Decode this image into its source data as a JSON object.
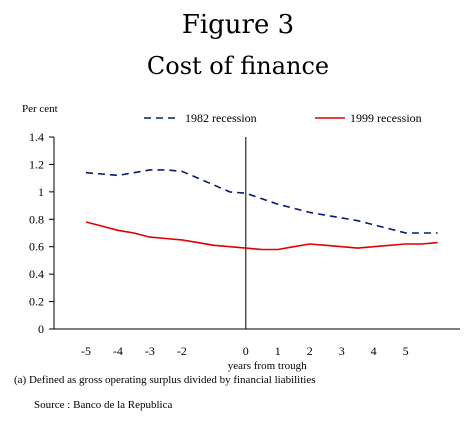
{
  "figure": {
    "title": "Figure 3",
    "subtitle": "Cost of finance"
  },
  "footnote": "(a) Defined as gross operating surplus divided by financial liabilities",
  "source": "Source : Banco de la Republica",
  "chart_data": {
    "type": "line",
    "ylabel": "Per cent",
    "xlabel": "years from trough",
    "ylim": [
      0,
      1.4
    ],
    "yticks": [
      "0",
      "0.2",
      "0.4",
      "0.6",
      "0.8",
      "1",
      "1.2",
      "1.4"
    ],
    "xlim": [
      -6.0,
      6.7
    ],
    "xticks": [
      "-5",
      "-4",
      "-3",
      "-2",
      "0",
      "1",
      "2",
      "3",
      "4",
      "5"
    ],
    "xtick_values": [
      -5,
      -4,
      -3,
      -2,
      0,
      1,
      2,
      3,
      4,
      5
    ],
    "vertical_line_at": 0,
    "grid": false,
    "legend": "top",
    "series": [
      {
        "name": "1982 recession",
        "color": "#0a1a6e",
        "dash": "dashed",
        "x": [
          -5,
          -4.5,
          -4,
          -3.5,
          -3,
          -2.5,
          -2,
          -1.5,
          -1,
          -0.5,
          0,
          0.5,
          1,
          1.5,
          2,
          2.5,
          3,
          3.5,
          4,
          4.5,
          5,
          5.5,
          6
        ],
        "values": [
          1.14,
          1.13,
          1.12,
          1.14,
          1.16,
          1.16,
          1.15,
          1.1,
          1.05,
          1.0,
          0.99,
          0.95,
          0.91,
          0.88,
          0.85,
          0.83,
          0.81,
          0.79,
          0.76,
          0.73,
          0.7,
          0.7,
          0.7
        ]
      },
      {
        "name": "1999 recession",
        "color": "#e00000",
        "dash": "solid",
        "x": [
          -5,
          -4.5,
          -4,
          -3.5,
          -3,
          -2.5,
          -2,
          -1.5,
          -1,
          -0.5,
          0,
          0.5,
          1,
          1.5,
          2,
          2.5,
          3,
          3.5,
          4,
          4.5,
          5,
          5.5,
          6
        ],
        "values": [
          0.78,
          0.75,
          0.72,
          0.7,
          0.67,
          0.66,
          0.65,
          0.63,
          0.61,
          0.6,
          0.59,
          0.58,
          0.58,
          0.6,
          0.62,
          0.61,
          0.6,
          0.59,
          0.6,
          0.61,
          0.62,
          0.62,
          0.63
        ]
      }
    ]
  }
}
